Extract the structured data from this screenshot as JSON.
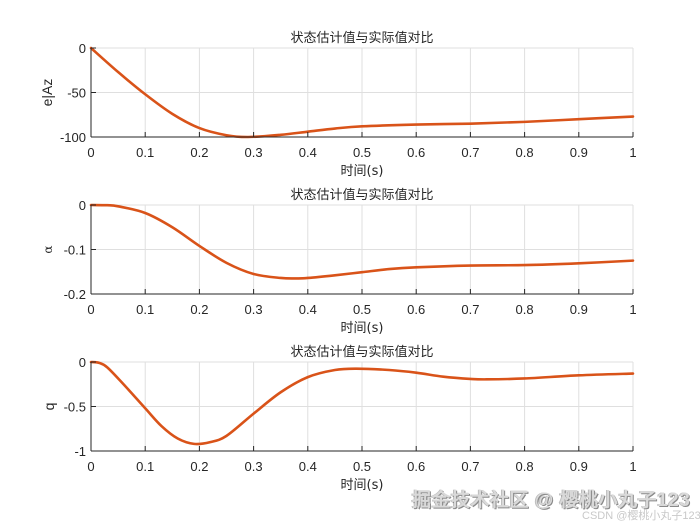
{
  "figure": {
    "line_color": "#D95319",
    "axis_color": "#262626",
    "grid_color": "#dfdfdf",
    "text_color": "#262626"
  },
  "chart_data": [
    {
      "type": "line",
      "title": "状态估计值与实际值对比",
      "xlabel": "时间(s)",
      "ylabel": "e|Az",
      "xlim": [
        0,
        1
      ],
      "ylim": [
        -100,
        0
      ],
      "xticks": [
        0,
        0.1,
        0.2,
        0.3,
        0.4,
        0.5,
        0.6,
        0.7,
        0.8,
        0.9,
        1
      ],
      "xtick_labels": [
        "0",
        "0.1",
        "0.2",
        "0.3",
        "0.4",
        "0.5",
        "0.6",
        "0.7",
        "0.8",
        "0.9",
        "1"
      ],
      "yticks": [
        0,
        -50,
        -100
      ],
      "ytick_labels": [
        "0",
        "-50",
        "-100"
      ],
      "grid": true,
      "series": [
        {
          "name": "e|Az",
          "x": [
            0,
            0.05,
            0.1,
            0.15,
            0.2,
            0.25,
            0.29,
            0.35,
            0.4,
            0.45,
            0.5,
            0.6,
            0.7,
            0.8,
            0.9,
            1.0
          ],
          "y": [
            0,
            -27,
            -52,
            -74,
            -90,
            -98,
            -100,
            -97.5,
            -94,
            -90.5,
            -88,
            -86,
            -85,
            -83,
            -80,
            -77
          ]
        }
      ]
    },
    {
      "type": "line",
      "title": "状态估计值与实际值对比",
      "xlabel": "时间(s)",
      "ylabel": "α",
      "xlim": [
        0,
        1
      ],
      "ylim": [
        -0.2,
        0
      ],
      "xticks": [
        0,
        0.1,
        0.2,
        0.3,
        0.4,
        0.5,
        0.6,
        0.7,
        0.8,
        0.9,
        1
      ],
      "xtick_labels": [
        "0",
        "0.1",
        "0.2",
        "0.3",
        "0.4",
        "0.5",
        "0.6",
        "0.7",
        "0.8",
        "0.9",
        "1"
      ],
      "yticks": [
        0,
        -0.1,
        -0.2
      ],
      "ytick_labels": [
        "0",
        "-0.1",
        "-0.2"
      ],
      "grid": true,
      "series": [
        {
          "name": "α",
          "x": [
            0,
            0.03,
            0.05,
            0.1,
            0.15,
            0.2,
            0.25,
            0.3,
            0.35,
            0.38,
            0.4,
            0.45,
            0.5,
            0.55,
            0.6,
            0.7,
            0.8,
            0.9,
            1.0
          ],
          "y": [
            0,
            -0.0005,
            -0.003,
            -0.018,
            -0.05,
            -0.092,
            -0.13,
            -0.155,
            -0.164,
            -0.165,
            -0.164,
            -0.158,
            -0.151,
            -0.144,
            -0.14,
            -0.136,
            -0.135,
            -0.131,
            -0.125
          ]
        }
      ]
    },
    {
      "type": "line",
      "title": "状态估计值与实际值对比",
      "xlabel": "时间(s)",
      "ylabel": "q",
      "xlim": [
        0,
        1
      ],
      "ylim": [
        -1,
        0
      ],
      "xticks": [
        0,
        0.1,
        0.2,
        0.3,
        0.4,
        0.5,
        0.6,
        0.7,
        0.8,
        0.9,
        1
      ],
      "xtick_labels": [
        "0",
        "0.1",
        "0.2",
        "0.3",
        "0.4",
        "0.5",
        "0.6",
        "0.7",
        "0.8",
        "0.9",
        "1"
      ],
      "yticks": [
        0,
        -0.5,
        -1
      ],
      "ytick_labels": [
        "0",
        "-0.5",
        "-1"
      ],
      "grid": true,
      "series": [
        {
          "name": "q",
          "x": [
            0,
            0.015,
            0.03,
            0.06,
            0.1,
            0.13,
            0.16,
            0.19,
            0.22,
            0.25,
            0.3,
            0.35,
            0.4,
            0.45,
            0.49,
            0.55,
            0.6,
            0.65,
            0.7,
            0.73,
            0.8,
            0.9,
            1.0
          ],
          "y": [
            0,
            -0.01,
            -0.06,
            -0.25,
            -0.52,
            -0.72,
            -0.86,
            -0.92,
            -0.9,
            -0.83,
            -0.58,
            -0.34,
            -0.17,
            -0.09,
            -0.075,
            -0.09,
            -0.12,
            -0.165,
            -0.19,
            -0.195,
            -0.185,
            -0.15,
            -0.13
          ]
        }
      ]
    }
  ],
  "watermark": {
    "main": "掘金技术社区 @ 樱桃小丸子123",
    "sub": "CSDN @樱桃小丸子123"
  }
}
